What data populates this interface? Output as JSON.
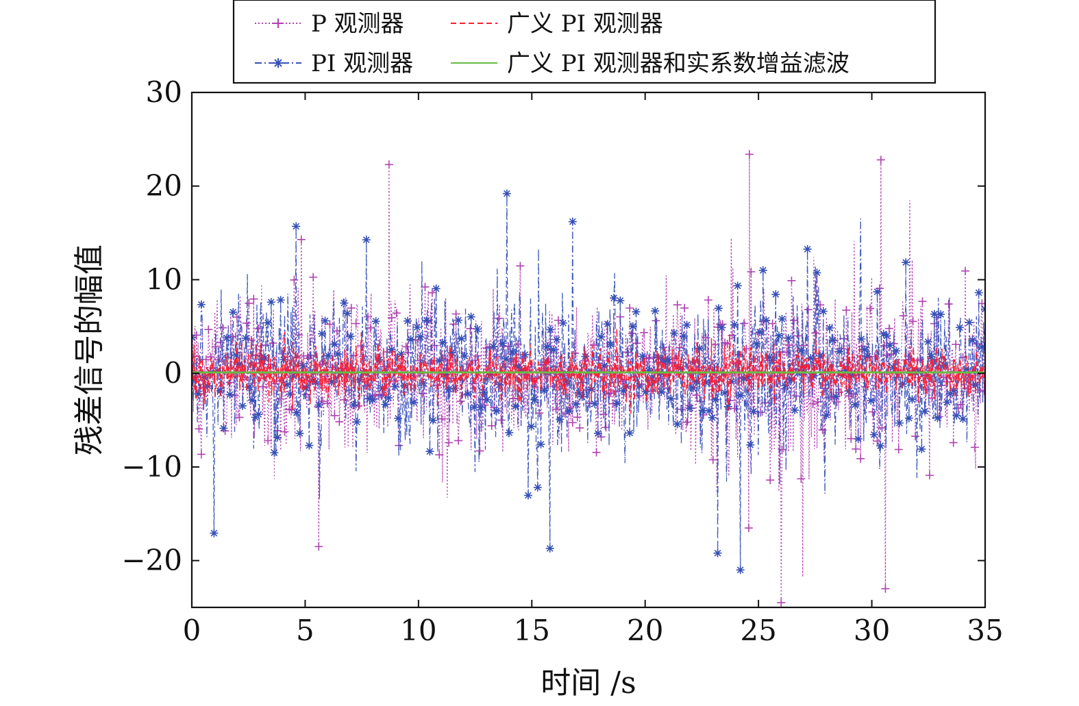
{
  "chart_data": {
    "type": "line",
    "xlabel": "时间 /s",
    "ylabel": "残差信号的幅值",
    "xlim": [
      0,
      35
    ],
    "ylim": [
      -25,
      30
    ],
    "x_ticks": [
      {
        "value": 0,
        "label": "0"
      },
      {
        "value": 5,
        "label": "5"
      },
      {
        "value": 10,
        "label": "10"
      },
      {
        "value": 15,
        "label": "15"
      },
      {
        "value": 20,
        "label": "20"
      },
      {
        "value": 25,
        "label": "25"
      },
      {
        "value": 30,
        "label": "30"
      },
      {
        "value": 35,
        "label": "35"
      }
    ],
    "y_ticks": [
      {
        "value": -20,
        "label": "−20"
      },
      {
        "value": -10,
        "label": "−10"
      },
      {
        "value": 0,
        "label": "0"
      },
      {
        "value": 10,
        "label": "10"
      },
      {
        "value": 20,
        "label": "20"
      },
      {
        "value": 30,
        "label": "30"
      }
    ],
    "grid": false,
    "legend_position": "top",
    "series": [
      {
        "name": "P 观测器",
        "color": "#b040b0",
        "line_style": "dotted",
        "marker": "plus",
        "envelope_times": [
          0,
          2.5,
          5,
          7.5,
          10,
          12.5,
          15,
          17.5,
          20,
          22.5,
          25,
          27.5,
          30,
          32.5,
          35
        ],
        "envelope_amplitude": [
          9,
          10,
          10.5,
          10,
          10,
          10.5,
          10,
          10,
          9.5,
          10,
          15,
          14,
          13,
          11,
          10
        ],
        "peaks": [
          {
            "x": 8.7,
            "y": 22.3
          },
          {
            "x": 24.6,
            "y": 23.4
          },
          {
            "x": 30.4,
            "y": 22.8
          },
          {
            "x": 5.6,
            "y": -18.5
          },
          {
            "x": 26.0,
            "y": -24.5
          },
          {
            "x": 30.6,
            "y": -23.0
          }
        ]
      },
      {
        "name": "PI 观测器",
        "color": "#3650b8",
        "line_style": "dashdot",
        "marker": "asterisk",
        "envelope_times": [
          0,
          2.5,
          5,
          7.5,
          10,
          12.5,
          15,
          17.5,
          20,
          22.5,
          25,
          27.5,
          30,
          32.5,
          35
        ],
        "envelope_amplitude": [
          9,
          10,
          11,
          10,
          10,
          10.5,
          10.5,
          10,
          9.5,
          10.5,
          12,
          11,
          10.5,
          10,
          10
        ],
        "peaks": [
          {
            "x": 13.9,
            "y": 19.2
          },
          {
            "x": 4.6,
            "y": 15.7
          },
          {
            "x": 16.8,
            "y": 16.2
          },
          {
            "x": 15.8,
            "y": -18.7
          },
          {
            "x": 24.2,
            "y": -21.0
          },
          {
            "x": 23.2,
            "y": -19.2
          }
        ]
      },
      {
        "name": "广义 PI 观测器",
        "color": "#ff1a2e",
        "line_style": "dashed",
        "marker": "none",
        "envelope_times": [
          0,
          5,
          10,
          15,
          20,
          25,
          30,
          35
        ],
        "envelope_amplitude": [
          3.2,
          3.5,
          3.2,
          3.3,
          3.2,
          3.4,
          3.3,
          3.2
        ]
      },
      {
        "name": "广义 PI 观测器和实系数增益滤波",
        "color": "#66bb44",
        "line_style": "solid",
        "marker": "none",
        "constant_value": 0.1
      }
    ]
  }
}
